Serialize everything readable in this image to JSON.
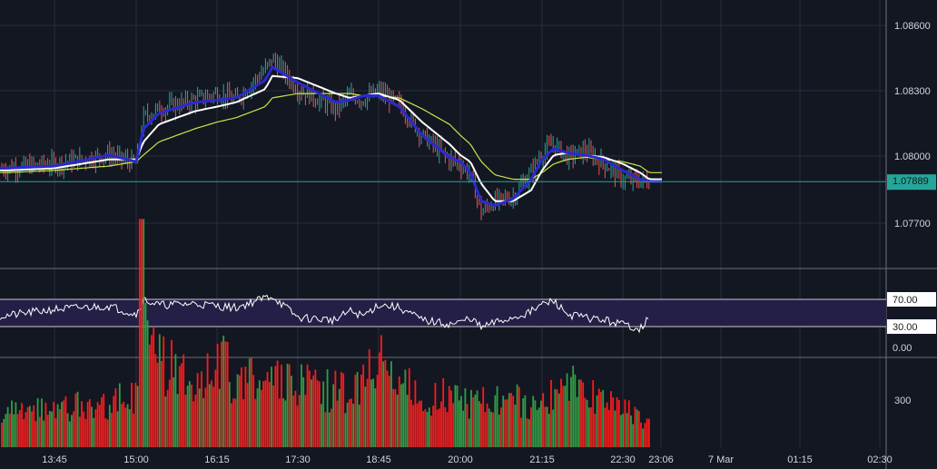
{
  "colors": {
    "background": "#131722",
    "grid": "#2a2e39",
    "axis_text": "#d1d4dc",
    "up_candle": "#26a69a",
    "down_candle": "#ef5350",
    "ma_fast": "#2a2ad0",
    "ma_mid": "#ffffff",
    "ma_slow": "#c8e64a",
    "last_price": "#26a69a",
    "rsi_band": "#241f46",
    "rsi_line": "#ffffff",
    "vol_up": "#2ea043",
    "vol_down": "#ff1a1a"
  },
  "chart_data": [
    {
      "type": "line",
      "title": "",
      "pane": "price",
      "description": "Candlestick price chart with three moving averages",
      "x_ticks": [
        "13:45",
        "15:00",
        "16:15",
        "17:30",
        "18:45",
        "20:00",
        "21:15",
        "22:30",
        "23:06",
        "7 Mar",
        "01:15",
        "02:30"
      ],
      "y_ticks": [
        "1.08600",
        "1.08300",
        "1.08000",
        "1.07700"
      ],
      "ylim": [
        1.0753,
        1.087
      ],
      "last_price_label": "1.07889",
      "last_price": 1.07889,
      "candle_times": [
        "13:00",
        "13:45",
        "14:30",
        "15:00",
        "15:10",
        "15:30",
        "16:00",
        "16:15",
        "16:30",
        "17:00",
        "17:10",
        "17:30",
        "18:00",
        "18:15",
        "18:30",
        "18:45",
        "19:00",
        "19:20",
        "19:45",
        "20:00",
        "20:10",
        "20:20",
        "20:30",
        "20:45",
        "21:00",
        "21:15",
        "21:30",
        "21:45",
        "22:00",
        "22:15",
        "22:30",
        "22:45",
        "23:00"
      ],
      "series": [
        {
          "name": "",
          "kind": "price",
          "x": [
            "13:00",
            "13:45",
            "14:30",
            "15:00",
            "15:10",
            "15:30",
            "16:00",
            "16:15",
            "16:30",
            "17:00",
            "17:10",
            "17:30",
            "18:00",
            "18:15",
            "18:30",
            "18:45",
            "19:00",
            "19:20",
            "19:45",
            "20:00",
            "20:10",
            "20:20",
            "20:30",
            "20:45",
            "21:00",
            "21:15",
            "21:30",
            "21:45",
            "22:00",
            "22:15",
            "22:30",
            "22:45",
            "23:00"
          ],
          "y": [
            1.0795,
            1.0797,
            1.0801,
            1.0797,
            1.0818,
            1.0822,
            1.0826,
            1.0829,
            1.0826,
            1.084,
            1.0845,
            1.0831,
            1.0822,
            1.0828,
            1.0826,
            1.083,
            1.0824,
            1.081,
            1.0799,
            1.0797,
            1.0792,
            1.0775,
            1.078,
            1.0782,
            1.0793,
            1.0802,
            1.0806,
            1.08,
            1.0803,
            1.0797,
            1.079,
            1.0789,
            1.0789
          ]
        },
        {
          "name": "",
          "kind": "ma_fast",
          "x": [
            "13:00",
            "13:45",
            "14:30",
            "15:00",
            "15:10",
            "15:30",
            "16:00",
            "16:15",
            "16:30",
            "17:00",
            "17:10",
            "17:30",
            "18:00",
            "18:15",
            "18:30",
            "18:45",
            "19:00",
            "19:20",
            "19:45",
            "20:00",
            "20:10",
            "20:20",
            "20:30",
            "20:45",
            "21:00",
            "21:15",
            "21:30",
            "21:45",
            "22:00",
            "22:15",
            "22:30",
            "22:45",
            "23:00"
          ],
          "y": [
            1.0795,
            1.0796,
            1.0801,
            1.0798,
            1.0813,
            1.082,
            1.0825,
            1.0826,
            1.0827,
            1.0835,
            1.0841,
            1.0834,
            1.0825,
            1.0826,
            1.0828,
            1.0828,
            1.0823,
            1.081,
            1.08,
            1.0798,
            1.0793,
            1.078,
            1.0778,
            1.0781,
            1.079,
            1.0799,
            1.0804,
            1.0802,
            1.0801,
            1.0799,
            1.0794,
            1.079,
            1.0789
          ]
        },
        {
          "name": "",
          "kind": "ma_mid",
          "x": [
            "13:00",
            "13:45",
            "14:30",
            "15:00",
            "15:10",
            "15:30",
            "16:00",
            "16:15",
            "16:30",
            "17:00",
            "17:10",
            "17:30",
            "18:00",
            "18:15",
            "18:30",
            "18:45",
            "19:00",
            "19:20",
            "19:45",
            "20:00",
            "20:10",
            "20:20",
            "20:30",
            "20:45",
            "21:00",
            "21:15",
            "21:30",
            "21:45",
            "22:00",
            "22:15",
            "22:30",
            "22:45",
            "23:00"
          ],
          "y": [
            1.0794,
            1.0795,
            1.0799,
            1.0799,
            1.0807,
            1.0815,
            1.0821,
            1.0823,
            1.0825,
            1.0831,
            1.0837,
            1.0836,
            1.0829,
            1.0827,
            1.0828,
            1.0829,
            1.0826,
            1.0816,
            1.0806,
            1.0801,
            1.0798,
            1.0788,
            1.078,
            1.078,
            1.0785,
            1.0794,
            1.0801,
            1.0802,
            1.0801,
            1.08,
            1.0797,
            1.0793,
            1.079
          ]
        },
        {
          "name": "",
          "kind": "ma_slow",
          "x": [
            "13:00",
            "13:45",
            "14:30",
            "15:00",
            "15:10",
            "15:30",
            "16:00",
            "16:15",
            "16:30",
            "17:00",
            "17:10",
            "17:30",
            "18:00",
            "18:15",
            "18:30",
            "18:45",
            "19:00",
            "19:20",
            "19:45",
            "20:00",
            "20:10",
            "20:20",
            "20:30",
            "20:45",
            "21:00",
            "21:15",
            "21:30",
            "21:45",
            "22:00",
            "22:15",
            "22:30",
            "22:45",
            "23:00"
          ],
          "y": [
            1.0793,
            1.0794,
            1.0796,
            1.0798,
            1.0801,
            1.0807,
            1.0813,
            1.0816,
            1.0818,
            1.0823,
            1.0827,
            1.0829,
            1.0829,
            1.0829,
            1.0828,
            1.0828,
            1.0827,
            1.0822,
            1.0815,
            1.081,
            1.0806,
            1.0798,
            1.0792,
            1.079,
            1.079,
            1.0793,
            1.0797,
            1.0799,
            1.08,
            1.0799,
            1.0798,
            1.0796,
            1.0793
          ]
        }
      ]
    },
    {
      "type": "line",
      "title": "",
      "pane": "rsi",
      "description": "RSI oscillator with overbought/oversold band",
      "y_ticks": [
        "70.00",
        "30.00",
        "0.00"
      ],
      "band": [
        30,
        70
      ],
      "ylim": [
        0,
        100
      ],
      "series": [
        {
          "name": "",
          "x": [
            "13:00",
            "13:45",
            "14:30",
            "15:00",
            "15:10",
            "15:30",
            "16:00",
            "16:15",
            "16:30",
            "17:00",
            "17:10",
            "17:30",
            "18:00",
            "18:15",
            "18:30",
            "18:45",
            "19:00",
            "19:20",
            "19:45",
            "20:00",
            "20:10",
            "20:20",
            "20:30",
            "20:45",
            "21:00",
            "21:15",
            "21:30",
            "21:45",
            "22:00",
            "22:15",
            "22:30",
            "22:45",
            "23:00"
          ],
          "y": [
            50,
            58,
            62,
            52,
            70,
            63,
            65,
            62,
            60,
            72,
            74,
            48,
            45,
            56,
            50,
            64,
            60,
            45,
            40,
            42,
            48,
            36,
            42,
            48,
            55,
            64,
            68,
            52,
            48,
            45,
            40,
            35,
            47
          ]
        }
      ]
    },
    {
      "type": "bar",
      "title": "",
      "pane": "volume",
      "description": "Volume histogram (green = up, red = down)",
      "y_ticks": [
        "300"
      ],
      "ylim": [
        0,
        400
      ],
      "categories": [
        "13:00",
        "13:45",
        "14:30",
        "15:00",
        "15:10",
        "15:30",
        "16:00",
        "16:15",
        "16:30",
        "17:00",
        "17:10",
        "17:30",
        "18:00",
        "18:15",
        "18:30",
        "18:45",
        "19:00",
        "19:20",
        "19:45",
        "20:00",
        "20:10",
        "20:20",
        "20:30",
        "20:45",
        "21:00",
        "21:15",
        "21:30",
        "21:45",
        "22:00",
        "22:15",
        "22:30",
        "22:45",
        "23:00"
      ],
      "series": [
        {
          "name": "",
          "values": [
            60,
            70,
            80,
            90,
            370,
            150,
            130,
            160,
            120,
            140,
            120,
            110,
            100,
            100,
            110,
            170,
            120,
            90,
            90,
            80,
            80,
            100,
            85,
            90,
            80,
            80,
            90,
            110,
            100,
            80,
            70,
            60,
            40
          ]
        }
      ]
    }
  ]
}
